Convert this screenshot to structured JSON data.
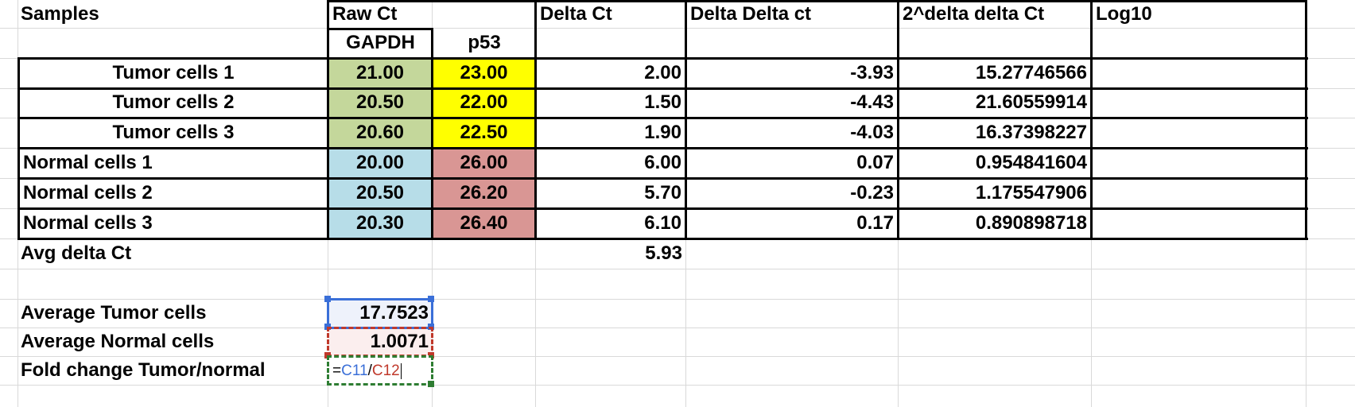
{
  "headers": {
    "samples": "Samples",
    "raw_ct": "Raw Ct",
    "delta_ct": "Delta Ct",
    "delta_delta_ct": "Delta Delta ct",
    "two_pow": "2^delta delta Ct",
    "log10": "Log10",
    "gapdh": "GAPDH",
    "p53": "p53"
  },
  "rows": [
    {
      "sample": "Tumor cells 1",
      "gapdh": "21.00",
      "p53": "23.00",
      "delta": "2.00",
      "ddct": "-3.93",
      "pow": "15.27746566"
    },
    {
      "sample": "Tumor cells 2",
      "gapdh": "20.50",
      "p53": "22.00",
      "delta": "1.50",
      "ddct": "-4.43",
      "pow": "21.60559914"
    },
    {
      "sample": "Tumor cells 3",
      "gapdh": "20.60",
      "p53": "22.50",
      "delta": "1.90",
      "ddct": "-4.03",
      "pow": "16.37398227"
    },
    {
      "sample": "Normal cells 1",
      "gapdh": "20.00",
      "p53": "26.00",
      "delta": "6.00",
      "ddct": "0.07",
      "pow": "0.954841604"
    },
    {
      "sample": "Normal cells 2",
      "gapdh": "20.50",
      "p53": "26.20",
      "delta": "5.70",
      "ddct": "-0.23",
      "pow": "1.175547906"
    },
    {
      "sample": "Normal cells 3",
      "gapdh": "20.30",
      "p53": "26.40",
      "delta": "6.10",
      "ddct": "0.17",
      "pow": "0.890898718"
    }
  ],
  "avg_delta": {
    "label": "Avg delta Ct",
    "value": "5.93"
  },
  "summary": {
    "avg_tumor_label": "Average Tumor cells",
    "avg_tumor_value": "17.7523",
    "avg_normal_label": "Average Normal cells",
    "avg_normal_value": "1.0071",
    "fold_label": "Fold change Tumor/normal"
  },
  "formula": {
    "prefix": "=",
    "ref1": "C11",
    "sep": "/",
    "ref2": "C12"
  },
  "colors": {
    "ref1": "#3a6fd8",
    "ref2": "#c0392b",
    "edit_border": "#2e7d32"
  }
}
